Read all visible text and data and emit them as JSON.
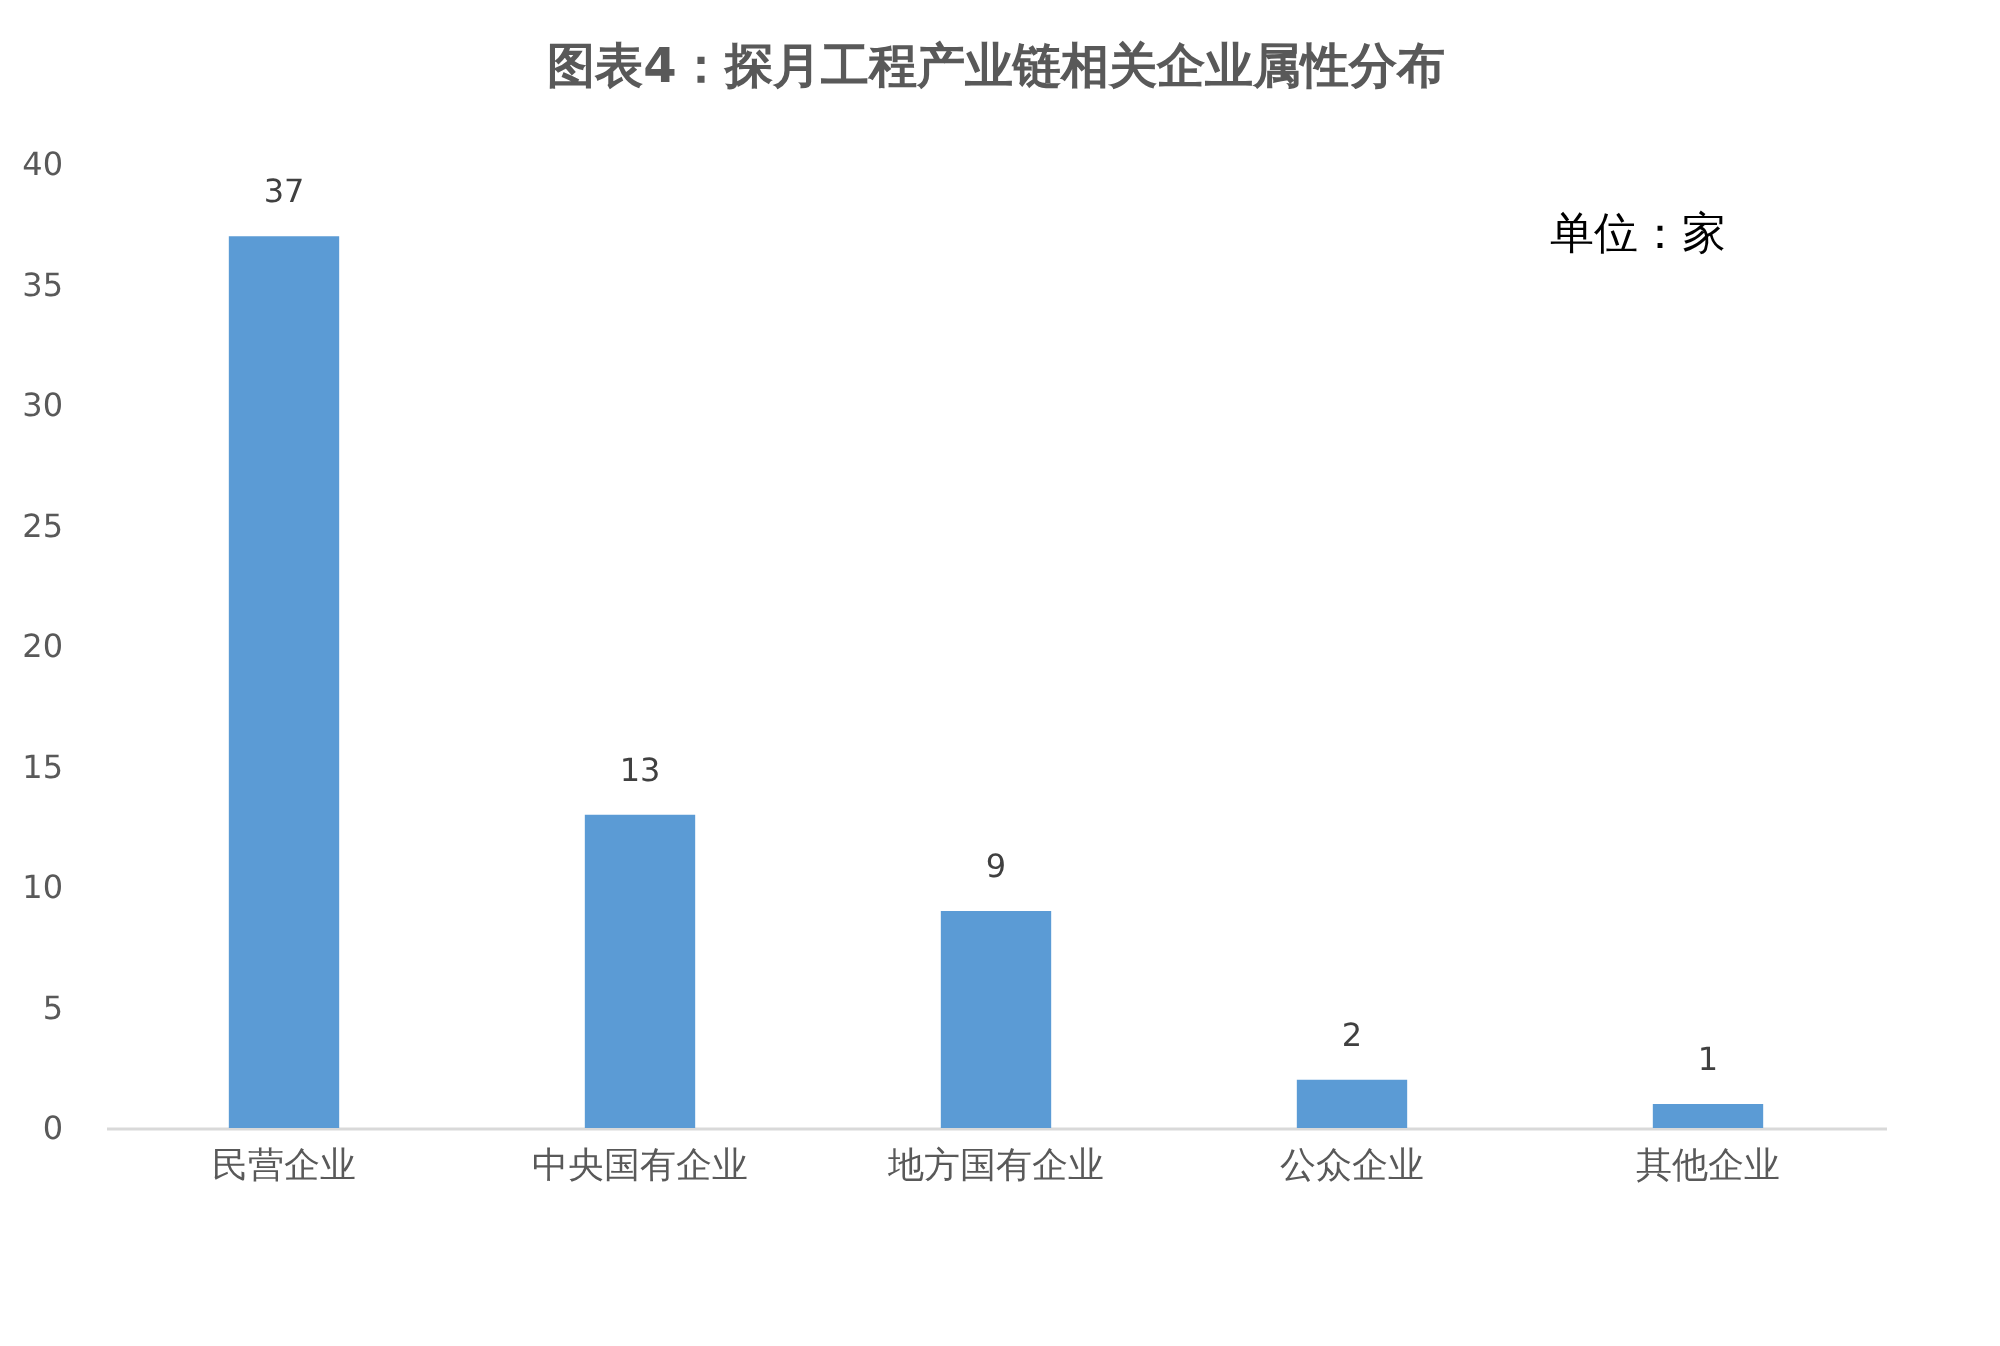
{
  "chart_data": {
    "type": "bar",
    "title": "图表4：探月工程产业链相关企业属性分布",
    "categories": [
      "民营企业",
      "中央国有企业",
      "地方国有企业",
      "公众企业",
      "其他企业"
    ],
    "values": [
      37,
      13,
      9,
      2,
      1
    ],
    "color": "#5b9bd5",
    "ylim": [
      0,
      40
    ],
    "yticks": [
      0,
      5,
      10,
      15,
      20,
      25,
      30,
      35,
      40
    ],
    "grid": false,
    "data_labels": true,
    "annotations": [
      "单位：家"
    ]
  }
}
